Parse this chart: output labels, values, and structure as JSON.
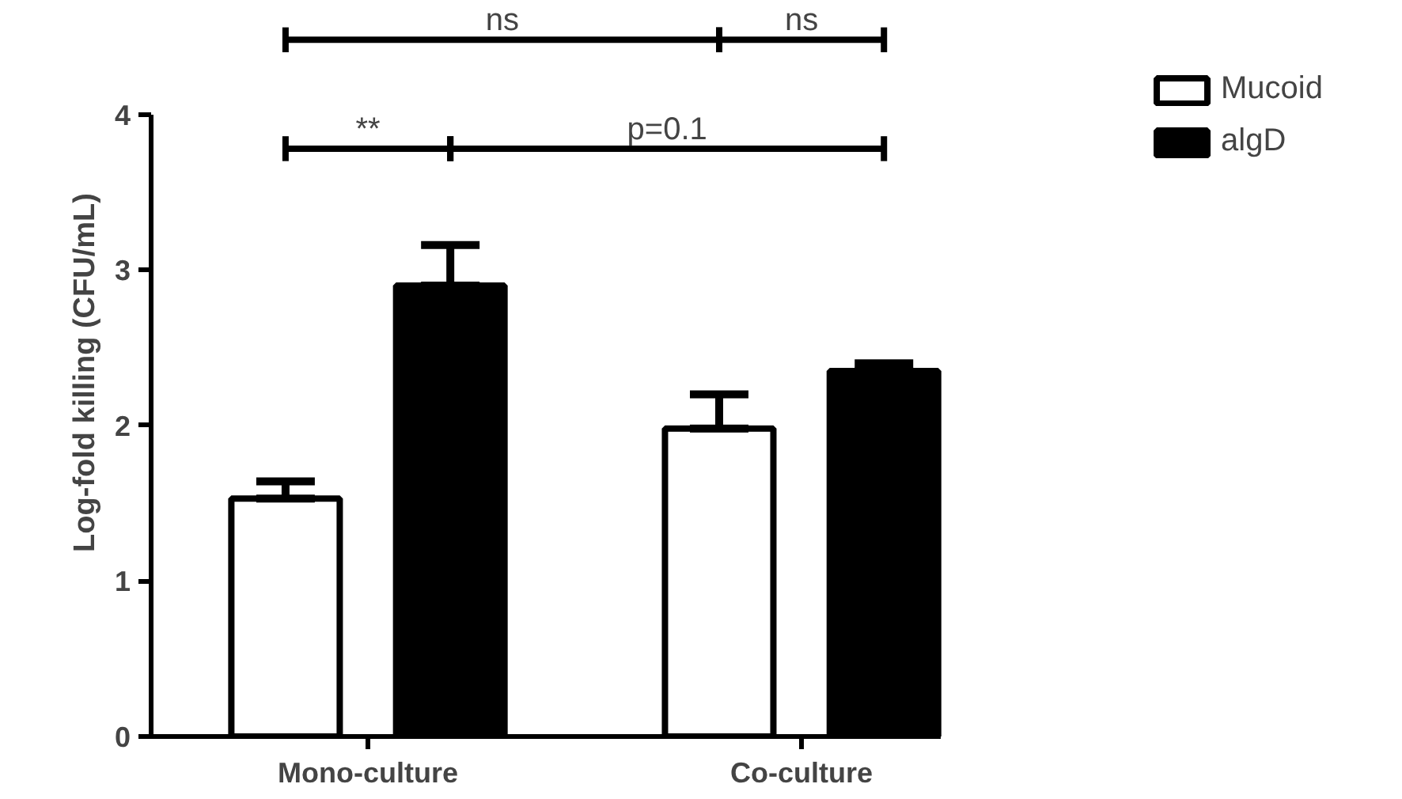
{
  "chart_data": {
    "type": "bar",
    "ylabel": "Log-fold killing (CFU/mL)",
    "categories": [
      "Mono-culture",
      "Co-culture"
    ],
    "series": [
      {
        "name": "Mucoid",
        "color": "#ffffff",
        "values": [
          1.53,
          1.98
        ],
        "errors": [
          [
            1.53,
            1.64
          ],
          [
            1.98,
            2.2
          ]
        ]
      },
      {
        "name": "algD",
        "color": "#000000",
        "values": [
          2.9,
          2.35
        ],
        "errors": [
          [
            2.9,
            3.16
          ],
          [
            2.35,
            2.4
          ]
        ]
      }
    ],
    "ylim": [
      0,
      4
    ],
    "yticks": [
      0,
      1,
      2,
      3,
      4
    ],
    "grid": false,
    "legend": "right",
    "annotations": [
      "**",
      "p=0.1",
      "ns",
      "ns"
    ]
  }
}
